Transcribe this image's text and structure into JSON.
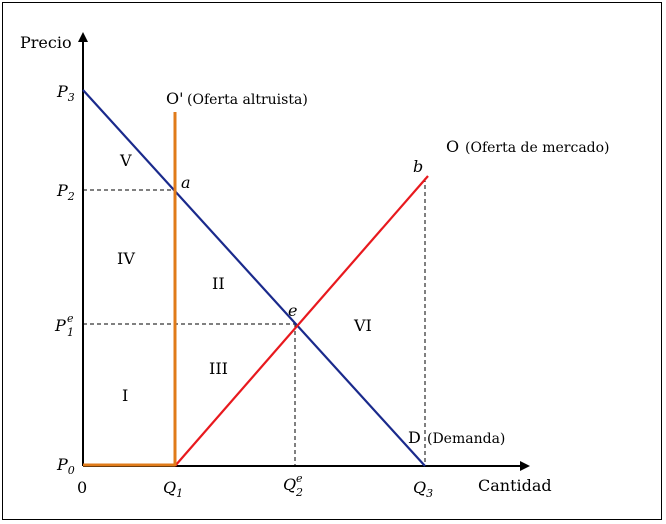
{
  "axes": {
    "y_label": "Precio",
    "x_label": "Cantidad",
    "origin": "0"
  },
  "y_ticks": {
    "p3": {
      "main": "P",
      "sub": "3"
    },
    "p2": {
      "main": "P",
      "sub": "2"
    },
    "p1e": {
      "main": "P",
      "sub": "1",
      "sup": "e"
    },
    "p0": {
      "main": "P",
      "sub": "0"
    }
  },
  "x_ticks": {
    "q1": {
      "main": "Q",
      "sub": "1"
    },
    "q2e": {
      "main": "Q",
      "sub": "2",
      "sup": "e"
    },
    "q3": {
      "main": "Q",
      "sub": "3"
    }
  },
  "curves": {
    "altruist_supply": {
      "label": "O'",
      "note": "(Oferta altruista)",
      "color": "#e07b1a"
    },
    "market_supply": {
      "label": "O",
      "note": "(Oferta de mercado)",
      "color": "#e8191e"
    },
    "demand": {
      "label": "D",
      "note": "(Demanda)",
      "color": "#1a2a8c"
    }
  },
  "points": {
    "a": "a",
    "b": "b",
    "e": "e"
  },
  "regions": {
    "I": "I",
    "II": "II",
    "III": "III",
    "IV": "IV",
    "V": "V",
    "VI": "VI"
  }
}
